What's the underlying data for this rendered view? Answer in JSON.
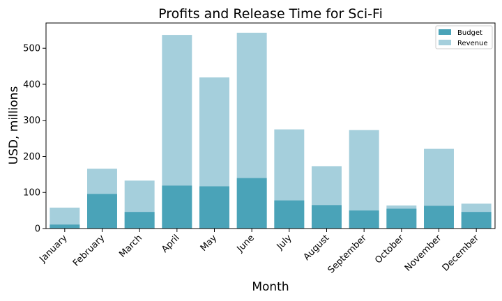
{
  "chart_data": {
    "type": "bar",
    "title": "Profits and Release Time for Sci-Fi",
    "xlabel": "Month",
    "ylabel": "USD, millions",
    "categories": [
      "January",
      "February",
      "March",
      "April",
      "May",
      "June",
      "July",
      "August",
      "September",
      "October",
      "November",
      "December"
    ],
    "series": [
      {
        "name": "Budget",
        "values": [
          11,
          96,
          46,
          119,
          117,
          140,
          78,
          65,
          50,
          55,
          63,
          46
        ],
        "color": "#4aa3b8"
      },
      {
        "name": "Revenue",
        "values": [
          58,
          166,
          133,
          537,
          419,
          543,
          275,
          173,
          273,
          64,
          221,
          69
        ],
        "color": "#a5cfdc"
      }
    ],
    "overlay": true,
    "ylim": [
      0,
      570
    ],
    "yticks": [
      0,
      100,
      200,
      300,
      400,
      500
    ],
    "grid": false,
    "legend_position": "top-right"
  }
}
